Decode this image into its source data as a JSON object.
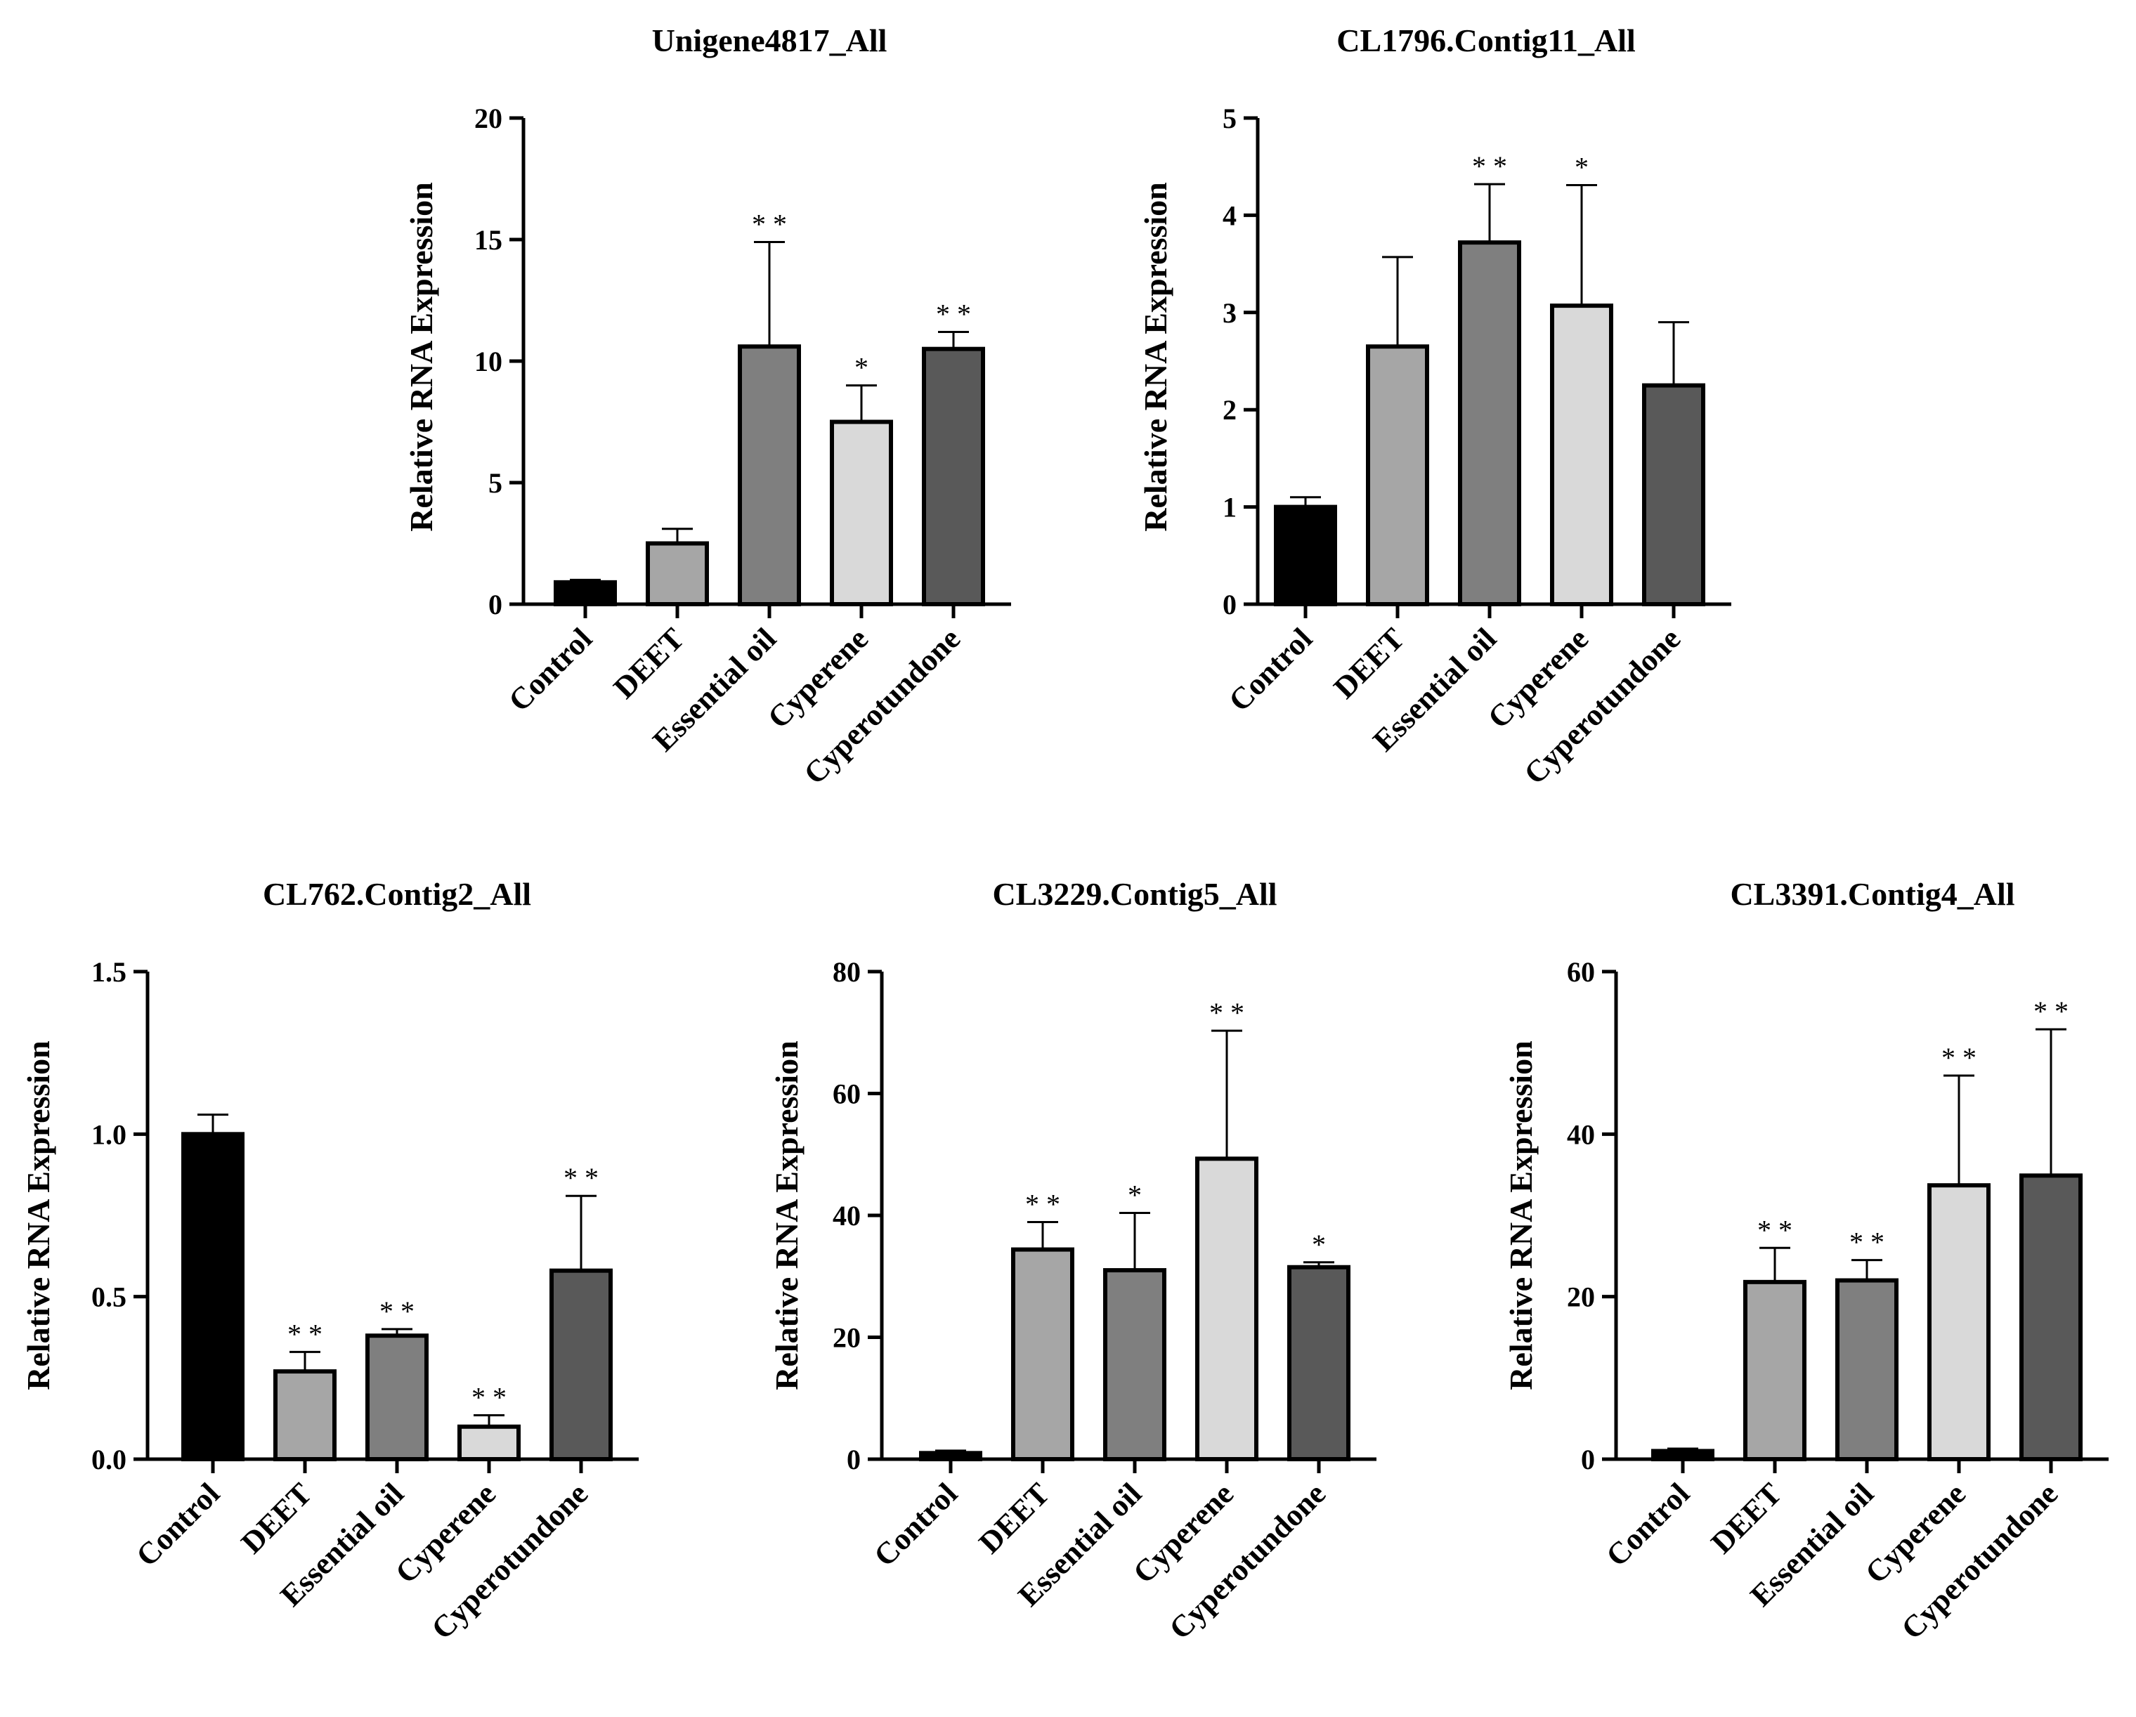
{
  "chart_data": [
    {
      "type": "bar",
      "title": "Unigene4817_All",
      "ylabel": "Relative RNA Expression",
      "xlabel": "",
      "categories": [
        "Control",
        "DEET",
        "Essential oil",
        "Cyperene",
        "Cyperotundone"
      ],
      "values": [
        0.9,
        2.5,
        10.6,
        7.5,
        10.5
      ],
      "errors": [
        0.1,
        0.6,
        4.3,
        1.5,
        0.7
      ],
      "significance": [
        "",
        "",
        "**",
        "*",
        "**"
      ],
      "ylim": [
        0,
        20
      ],
      "yticks": [
        "0",
        "5",
        "10",
        "15",
        "20"
      ],
      "bar_colors": [
        "#000000",
        "#a6a6a6",
        "#7f7f7f",
        "#d9d9d9",
        "#595959"
      ]
    },
    {
      "type": "bar",
      "title": "CL1796.Contig11_All",
      "ylabel": "Relative RNA Expression",
      "xlabel": "",
      "categories": [
        "Control",
        "DEET",
        "Essential oil",
        "Cyperene",
        "Cyperotundone"
      ],
      "values": [
        1.0,
        2.65,
        3.72,
        3.07,
        2.25
      ],
      "errors": [
        0.1,
        0.92,
        0.6,
        1.24,
        0.65
      ],
      "significance": [
        "",
        "",
        "**",
        "*",
        ""
      ],
      "ylim": [
        0,
        5
      ],
      "yticks": [
        "0",
        "1",
        "2",
        "3",
        "4",
        "5"
      ],
      "bar_colors": [
        "#000000",
        "#a6a6a6",
        "#7f7f7f",
        "#d9d9d9",
        "#595959"
      ]
    },
    {
      "type": "bar",
      "title": "CL762.Contig2_All",
      "ylabel": "Relative RNA Expression",
      "xlabel": "",
      "categories": [
        "Control",
        "DEET",
        "Essential oil",
        "Cyperene",
        "Cyperotundone"
      ],
      "values": [
        1.0,
        0.27,
        0.38,
        0.1,
        0.58
      ],
      "errors": [
        0.06,
        0.06,
        0.02,
        0.035,
        0.23
      ],
      "significance": [
        "",
        "**",
        "**",
        "**",
        "**"
      ],
      "ylim": [
        0,
        1.5
      ],
      "yticks": [
        "0.0",
        "0.5",
        "1.0",
        "1.5"
      ],
      "bar_colors": [
        "#000000",
        "#a6a6a6",
        "#7f7f7f",
        "#d9d9d9",
        "#595959"
      ]
    },
    {
      "type": "bar",
      "title": "CL3229.Contig5_All",
      "ylabel": "Relative RNA Expression",
      "xlabel": "",
      "categories": [
        "Control",
        "DEET",
        "Essential oil",
        "Cyperene",
        "Cyperotundone"
      ],
      "values": [
        1.0,
        34.4,
        31.0,
        49.3,
        31.5
      ],
      "errors": [
        0.4,
        4.5,
        9.4,
        21.0,
        0.8
      ],
      "significance": [
        "",
        "**",
        "*",
        "**",
        "*"
      ],
      "ylim": [
        0,
        80
      ],
      "yticks": [
        "0",
        "20",
        "40",
        "60",
        "80"
      ],
      "bar_colors": [
        "#000000",
        "#a6a6a6",
        "#7f7f7f",
        "#d9d9d9",
        "#595959"
      ]
    },
    {
      "type": "bar",
      "title": "CL3391.Contig4_All",
      "ylabel": "Relative RNA Expression",
      "xlabel": "",
      "categories": [
        "Control",
        "DEET",
        "Essential oil",
        "Cyperene",
        "Cyperotundone"
      ],
      "values": [
        1.0,
        21.8,
        22.0,
        33.7,
        34.9
      ],
      "errors": [
        0.3,
        4.2,
        2.5,
        13.5,
        18.0
      ],
      "significance": [
        "",
        "**",
        "**",
        "**",
        "**"
      ],
      "ylim": [
        0,
        60
      ],
      "yticks": [
        "0",
        "20",
        "40",
        "60"
      ],
      "bar_colors": [
        "#000000",
        "#a6a6a6",
        "#7f7f7f",
        "#d9d9d9",
        "#595959"
      ]
    }
  ]
}
